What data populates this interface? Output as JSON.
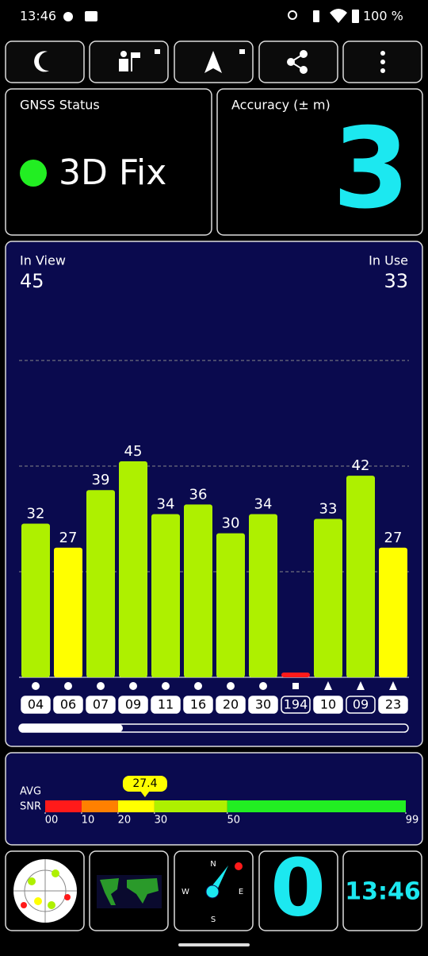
{
  "status_bar": {
    "time": "13:46",
    "battery": "100 %"
  },
  "gnss_status": {
    "label": "GNSS Status",
    "fix": "3D Fix"
  },
  "accuracy": {
    "label": "Accuracy (± m)",
    "value": 3
  },
  "chart_data": {
    "type": "bar",
    "in_view_label": "In View",
    "in_view": 45,
    "in_use_label": "In Use",
    "in_use": 33,
    "categories": [
      "04",
      "06",
      "07",
      "09",
      "11",
      "16",
      "20",
      "30",
      "194",
      "10",
      "09",
      "23"
    ],
    "values": [
      32,
      27,
      39,
      45,
      34,
      36,
      30,
      34,
      1,
      33,
      42,
      27
    ],
    "colors": [
      "#aef000",
      "#ffff00",
      "#aef000",
      "#aef000",
      "#aef000",
      "#aef000",
      "#aef000",
      "#aef000",
      "#ff1a1a",
      "#aef000",
      "#aef000",
      "#ffff00"
    ],
    "markers": [
      "circle",
      "circle",
      "circle",
      "circle",
      "circle",
      "circle",
      "circle",
      "circle",
      "square",
      "triangle",
      "triangle",
      "triangle"
    ],
    "used": [
      true,
      true,
      true,
      true,
      true,
      true,
      true,
      true,
      false,
      true,
      false,
      true
    ],
    "ylim": [
      0,
      88
    ],
    "yticks": [
      22,
      44,
      66
    ],
    "grid": true
  },
  "snr": {
    "avg_label": "AVG",
    "snr_label": "SNR",
    "value": 27.4,
    "xlim": [
      0,
      99
    ],
    "xticks": [
      {
        "value": 0,
        "label": "00"
      },
      10,
      20,
      30,
      50,
      99
    ],
    "segment_colors": [
      "#ff1a1a",
      "#ff8000",
      "#ffff00",
      "#aef000",
      "#22ee22"
    ]
  },
  "bottom": {
    "compass": {
      "n": "N",
      "e": "E",
      "s": "S",
      "w": "W"
    },
    "count": 0,
    "clock": "13:46"
  }
}
